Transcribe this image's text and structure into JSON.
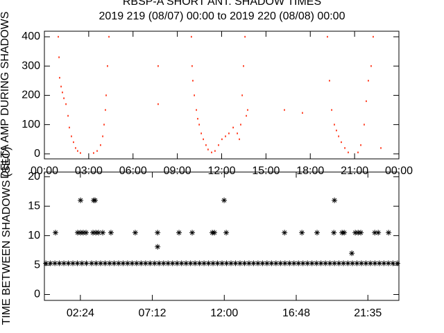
{
  "chart_data": [
    {
      "type": "scatter",
      "title": "RBSP-A SHORT ANT. SHADOW TIMES",
      "subtitle": "2019 219 (08/07) 00:00 to 2019 220 (08/08) 00:00",
      "ylabel": "DELTA AMP DURING SHADOWS",
      "color": "#ff2000",
      "marker": "dot",
      "xlim": [
        0,
        24
      ],
      "ylim": [
        -17,
        419
      ],
      "xticks": [
        {
          "value": 0,
          "label": "00:00"
        },
        {
          "value": 3,
          "label": "03:00"
        },
        {
          "value": 6,
          "label": "06:00"
        },
        {
          "value": 9,
          "label": "09:00"
        },
        {
          "value": 12,
          "label": "12:00"
        },
        {
          "value": 15,
          "label": "15:00"
        },
        {
          "value": 18,
          "label": "18:00"
        },
        {
          "value": 21,
          "label": "21:00"
        },
        {
          "value": 24,
          "label": "00:00"
        }
      ],
      "yticks": [
        0,
        100,
        200,
        300,
        400
      ],
      "x": [
        0.94,
        0.99,
        1.03,
        1.13,
        1.22,
        1.32,
        1.46,
        1.6,
        1.69,
        1.83,
        1.97,
        2.11,
        2.25,
        2.44,
        3.33,
        3.57,
        3.8,
        3.95,
        4.04,
        4.13,
        4.18,
        4.27,
        4.37,
        7.7,
        7.7,
        9.95,
        10.0,
        10.05,
        10.15,
        10.29,
        10.38,
        10.48,
        10.62,
        10.76,
        10.94,
        11.08,
        11.32,
        11.55,
        11.79,
        12.02,
        12.26,
        12.49,
        12.78,
        13.06,
        13.2,
        13.29,
        13.39,
        13.48,
        13.58,
        13.67,
        13.76,
        16.25,
        17.47,
        19.16,
        19.3,
        19.45,
        19.63,
        19.77,
        19.92,
        20.1,
        20.34,
        20.57,
        21.23,
        21.42,
        21.65,
        21.79,
        21.93,
        22.12,
        22.26,
        22.78
      ],
      "values": [
        400,
        330,
        260,
        230,
        210,
        190,
        170,
        130,
        90,
        60,
        40,
        20,
        10,
        3,
        3,
        10,
        30,
        60,
        100,
        150,
        200,
        300,
        400,
        170,
        300,
        400,
        300,
        250,
        200,
        150,
        120,
        100,
        70,
        50,
        30,
        15,
        5,
        10,
        30,
        50,
        60,
        70,
        90,
        70,
        50,
        100,
        200,
        300,
        400,
        130,
        150,
        150,
        140,
        400,
        250,
        150,
        100,
        80,
        60,
        40,
        20,
        5,
        5,
        30,
        100,
        180,
        250,
        300,
        400,
        20
      ]
    },
    {
      "type": "scatter",
      "ylabel": "TIME BETWEEN SHADOWS (SEC)",
      "color": "#000000",
      "marker": "asterisk",
      "xlim": [
        0,
        23.65
      ],
      "ylim": [
        -1,
        20.8
      ],
      "xticks": [
        {
          "value": 2.4,
          "label": "02:24"
        },
        {
          "value": 7.2,
          "label": "07:12"
        },
        {
          "value": 12,
          "label": "12:00"
        },
        {
          "value": 16.8,
          "label": "16:48"
        },
        {
          "value": 21.58,
          "label": "21:35"
        }
      ],
      "yticks": [
        0,
        5,
        10,
        15,
        20
      ],
      "x": [
        0.1,
        0.4,
        0.7,
        1.0,
        1.3,
        1.6,
        1.9,
        2.2,
        2.5,
        2.8,
        3.15,
        3.45,
        3.75,
        4.05,
        4.35,
        4.65,
        4.95,
        5.25,
        5.55,
        5.85,
        6.15,
        6.45,
        6.75,
        7.05,
        7.35,
        7.65,
        7.95,
        8.25,
        8.55,
        8.85,
        9.15,
        9.45,
        9.75,
        10.05,
        10.35,
        10.65,
        10.95,
        11.25,
        11.55,
        11.85,
        12.15,
        12.45,
        12.75,
        13.05,
        13.35,
        13.65,
        13.95,
        14.25,
        14.55,
        14.85,
        15.15,
        15.45,
        15.75,
        16.05,
        16.35,
        16.65,
        16.95,
        17.25,
        17.55,
        17.85,
        18.15,
        18.45,
        18.75,
        19.05,
        19.35,
        19.65,
        19.95,
        20.25,
        20.55,
        20.85,
        21.15,
        21.45,
        21.75,
        22.05,
        22.35,
        22.65,
        22.95,
        23.25,
        23.55,
        0.74,
        2.22,
        2.41,
        2.59,
        2.78,
        2.41,
        3.24,
        3.43,
        3.61,
        3.29,
        3.38,
        3.89,
        4.44,
        6.06,
        7.55,
        7.55,
        8.98,
        9.86,
        11.2,
        11.34,
        11.99,
        12.13,
        16.02,
        17.18,
        18.19,
        19.31,
        19.35,
        19.86,
        20.0,
        20.51,
        20.74,
        20.93,
        21.11,
        22.04,
        22.27,
        22.96
      ],
      "values": [
        5.3,
        5.3,
        5.3,
        5.3,
        5.3,
        5.3,
        5.3,
        5.3,
        5.3,
        5.3,
        5.3,
        5.3,
        5.3,
        5.3,
        5.3,
        5.3,
        5.3,
        5.3,
        5.3,
        5.3,
        5.3,
        5.3,
        5.3,
        5.3,
        5.3,
        5.3,
        5.3,
        5.3,
        5.3,
        5.3,
        5.3,
        5.3,
        5.3,
        5.3,
        5.3,
        5.3,
        5.3,
        5.3,
        5.3,
        5.3,
        5.3,
        5.3,
        5.3,
        5.3,
        5.3,
        5.3,
        5.3,
        5.3,
        5.3,
        5.3,
        5.3,
        5.3,
        5.3,
        5.3,
        5.3,
        5.3,
        5.3,
        5.3,
        5.3,
        5.3,
        5.3,
        5.3,
        5.3,
        5.3,
        5.3,
        5.3,
        5.3,
        5.3,
        5.3,
        5.3,
        5.3,
        5.3,
        5.3,
        5.3,
        5.3,
        5.3,
        5.3,
        5.3,
        5.3,
        10.5,
        10.5,
        10.5,
        10.5,
        10.5,
        16,
        10.5,
        10.5,
        10.5,
        16,
        16,
        10.5,
        10.5,
        10.5,
        10.5,
        8.1,
        10.5,
        10.5,
        10.5,
        10.5,
        16,
        10.5,
        10.5,
        10.5,
        10.5,
        10.5,
        16,
        10.5,
        10.5,
        7,
        10.5,
        10.5,
        10.5,
        10.5,
        10.5,
        10.5
      ]
    }
  ]
}
